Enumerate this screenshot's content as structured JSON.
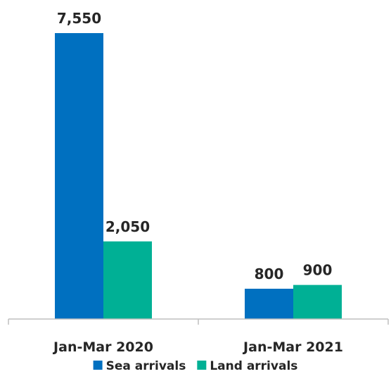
{
  "chart_data": {
    "type": "bar",
    "categories": [
      "Jan-Mar 2020",
      "Jan-Mar 2021"
    ],
    "series": [
      {
        "name": "Sea arrivals",
        "values": [
          7550,
          800
        ],
        "color": "#0070C0"
      },
      {
        "name": "Land arrivals",
        "values": [
          2050,
          900
        ],
        "color": "#00B095"
      }
    ],
    "data_labels": [
      [
        "7,550",
        "2,050"
      ],
      [
        "800",
        "900"
      ]
    ],
    "legend_position": "bottom",
    "grid": false,
    "axis_color": "#BFBFBF",
    "ylim": [
      0,
      7550
    ]
  }
}
